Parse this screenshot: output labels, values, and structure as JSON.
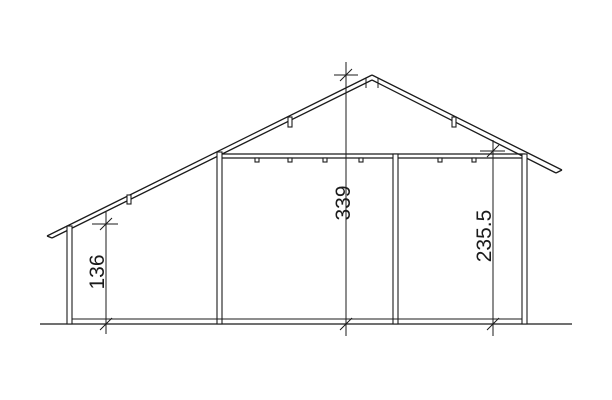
{
  "diagram": {
    "type": "building-elevation",
    "dimensions": [
      {
        "id": "height-left",
        "label": "136"
      },
      {
        "id": "height-ridge",
        "label": "339"
      },
      {
        "id": "height-right",
        "label": "235.5"
      }
    ]
  }
}
